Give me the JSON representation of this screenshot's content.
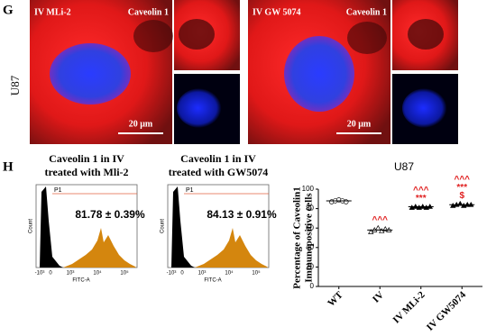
{
  "panel_g": {
    "label": "G",
    "row_label": "U87",
    "images": [
      {
        "treatment": "IV MLi-2",
        "stain": "Caveolin 1",
        "scale_bar": "20 μm"
      },
      {
        "treatment": "IV GW 5074",
        "stain": "Caveolin 1",
        "scale_bar": "20 μm"
      }
    ]
  },
  "panel_h": {
    "label": "H",
    "histograms": [
      {
        "title": [
          "Caveolin 1 in IV",
          "treated with Mli-2"
        ],
        "gate": "P1",
        "percentage": "81.78 ± 0.39%",
        "y_label": "Count",
        "x_label": "FITC-A",
        "x_ticks": [
          "-10³",
          "0",
          "10³",
          "10⁴",
          "10⁵"
        ]
      },
      {
        "title": [
          "Caveolin 1 in IV",
          "treated with GW5074"
        ],
        "gate": "P1",
        "percentage": "84.13 ± 0.91%",
        "y_label": "Count",
        "x_label": "FITC-A",
        "x_ticks": [
          "-10³",
          "0",
          "10³",
          "10⁴",
          "10⁵"
        ]
      }
    ]
  },
  "chart_data": {
    "type": "scatter",
    "title": "U87",
    "y_label": [
      "Percentage of Caveolin1",
      "Immunopositive cells"
    ],
    "categories": [
      "WT",
      "IV",
      "IV MLi-2",
      "IV GW5074"
    ],
    "points": [
      [
        87,
        88,
        89,
        88,
        87
      ],
      [
        56,
        58,
        60,
        57,
        59,
        58
      ],
      [
        81,
        82,
        81,
        82,
        81,
        82
      ],
      [
        83,
        84,
        85,
        83,
        84,
        84
      ]
    ],
    "means": [
      88,
      58,
      82,
      84
    ],
    "markers": [
      "circle",
      "triangle",
      "triangle-filled",
      "triangle-filled"
    ],
    "annotations": [
      null,
      [
        "^^^"
      ],
      [
        "^^^",
        "***"
      ],
      [
        "^^^",
        "***",
        "$"
      ]
    ],
    "annotation_color": "#e02020",
    "ylim": [
      0,
      100
    ],
    "yticks": [
      0,
      20,
      40,
      60,
      80,
      100
    ]
  }
}
